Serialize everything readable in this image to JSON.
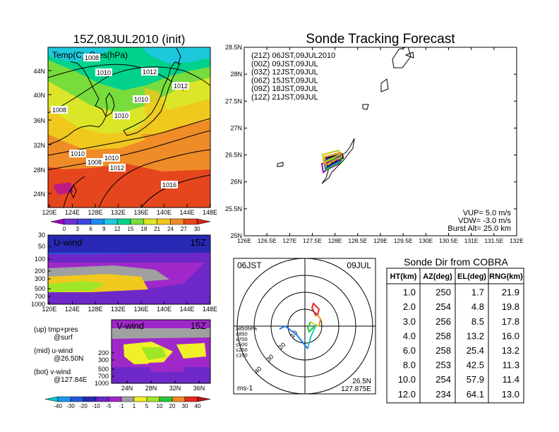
{
  "left_panel": {
    "title": "15Z,08JUL2010 (init)",
    "map_label": "Temp(C)+Pres(hPa)",
    "lat_ticks": [
      "44N",
      "40N",
      "36N",
      "32N",
      "28N",
      "24N"
    ],
    "lon_ticks": [
      "120E",
      "124E",
      "128E",
      "132E",
      "136E",
      "140E",
      "144E",
      "148E"
    ],
    "isobar_labels": [
      "1008",
      "1010",
      "1012",
      "1012",
      "1010",
      "1008",
      "1010",
      "1008",
      "1010",
      "1012",
      "1016",
      "1010"
    ],
    "temp_colorbar": {
      "labels": [
        "0",
        "3",
        "6",
        "9",
        "12",
        "15",
        "18",
        "21",
        "24",
        "27",
        "30"
      ],
      "colors": [
        "#a000c8",
        "#6e2fd0",
        "#3c46dc",
        "#1e8cf0",
        "#1ec8dc",
        "#00d28c",
        "#78dc3c",
        "#dce628",
        "#f0c81e",
        "#f08c28",
        "#e6461e",
        "#d22314"
      ]
    },
    "u_wind": {
      "label": "U-wind",
      "time": "15Z",
      "y_ticks": [
        "30",
        "50",
        "100",
        "200",
        "300",
        "500",
        "700",
        "1000"
      ],
      "x_ticks": [
        "120E",
        "124E",
        "128E",
        "132E",
        "136E",
        "140E",
        "144E",
        "148E"
      ]
    },
    "v_wind": {
      "label": "V-wind",
      "time": "15Z",
      "y_ticks": [
        "200",
        "300",
        "500",
        "700",
        "1000"
      ],
      "x_ticks": [
        "24N",
        "28N",
        "32N",
        "36N"
      ]
    },
    "legend_notes": [
      {
        "line1": "(up) tmp+pres",
        "line2": "@surf"
      },
      {
        "line1": "(mid) u-wind",
        "line2": "@26.50N"
      },
      {
        "line1": "(bot) v-wind",
        "line2": "@127.84E"
      }
    ],
    "wind_colorbar": {
      "labels": [
        "-40",
        "-30",
        "-20",
        "-10",
        "-5",
        "-1",
        "1",
        "5",
        "10",
        "20",
        "30",
        "40"
      ],
      "colors": [
        "#00c8c8",
        "#1e96f0",
        "#1e5adc",
        "#2828b4",
        "#6e28c8",
        "#a028c8",
        "#a0a0a0",
        "#f0f028",
        "#a0e628",
        "#28c83c",
        "#f08c1e",
        "#e6281e",
        "#b41414"
      ]
    }
  },
  "forecast_panel": {
    "title": "Sonde Tracking Forecast",
    "lat_ticks": [
      "28.5N",
      "28N",
      "27.5N",
      "27N",
      "26.5N",
      "26N",
      "25.5N",
      "25N"
    ],
    "lon_ticks": [
      "126E",
      "126.5E",
      "127E",
      "127.5E",
      "128E",
      "128.5E",
      "129E",
      "129.5E",
      "130E",
      "130.5E",
      "131E",
      "131.5E",
      "132E"
    ],
    "legend": [
      {
        "text": "(21Z)  06JST,09JUL2010",
        "color": "#000000"
      },
      {
        "text": "(00Z)  09JST,09JUL",
        "color": "#a000c8"
      },
      {
        "text": "(03Z)  12JST,09JUL",
        "color": "#1e3cdc"
      },
      {
        "text": "(06Z)  15JST,09JUL",
        "color": "#14b414"
      },
      {
        "text": "(09Z)  18JST,09JUL",
        "color": "#c8c814"
      },
      {
        "text": "(12Z)  21JST,09JUL",
        "color": "#f08c1e"
      }
    ],
    "params": {
      "vup": "VUP=  5.0  m/s",
      "vdw": "VDW=  -3.0  m/s",
      "burst": "Burst Alt=  25.0  km"
    }
  },
  "polar_panel": {
    "time_label": "06JST",
    "date_label": "09JUL",
    "ring_labels": [
      "10",
      "20",
      "30",
      "40"
    ],
    "pressure_legend": [
      {
        "text": "≥850hPa",
        "color": "#e6281e"
      },
      {
        "text": "≤850",
        "color": "#f08c1e"
      },
      {
        "text": "≤700",
        "color": "#dcdc1e"
      },
      {
        "text": "≤500",
        "color": "#28c83c"
      },
      {
        "text": "≤250",
        "color": "#1ec8c8"
      },
      {
        "text": "≤100",
        "color": "#1e78f0"
      }
    ],
    "unit": "ms-1",
    "lat": "26.5N",
    "lon": "127.875E"
  },
  "sonde_table": {
    "title": "Sonde Dir from COBRA",
    "headers": [
      "HT(km)",
      "AZ(deg)",
      "EL(deg)",
      "RNG(km)"
    ],
    "rows": [
      [
        "1.0",
        "250",
        "1.7",
        "21.9"
      ],
      [
        "2.0",
        "254",
        "4.8",
        "19.8"
      ],
      [
        "3.0",
        "256",
        "8.5",
        "17.8"
      ],
      [
        "4.0",
        "258",
        "13.2",
        "16.0"
      ],
      [
        "6.0",
        "258",
        "25.4",
        "13.2"
      ],
      [
        "8.0",
        "253",
        "42.5",
        "11.3"
      ],
      [
        "10.0",
        "254",
        "57.9",
        "11.4"
      ],
      [
        "12.0",
        "234",
        "64.1",
        "13.0"
      ]
    ]
  }
}
